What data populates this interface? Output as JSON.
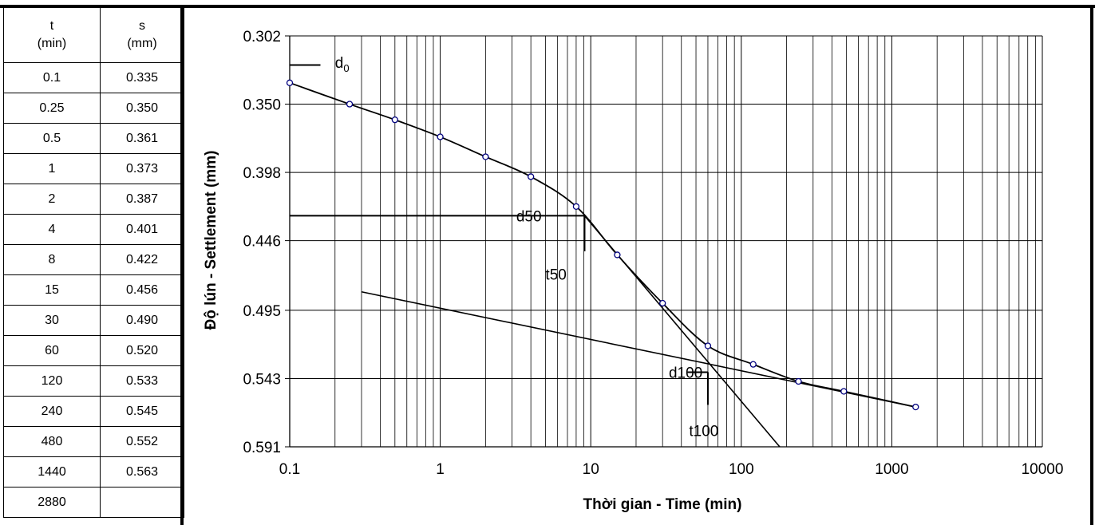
{
  "table": {
    "header_t": "t",
    "header_t_unit": "(min)",
    "header_s": "s",
    "header_s_unit": "(mm)",
    "rows": [
      {
        "t": "0.1",
        "s": "0.335"
      },
      {
        "t": "0.25",
        "s": "0.350"
      },
      {
        "t": "0.5",
        "s": "0.361"
      },
      {
        "t": "1",
        "s": "0.373"
      },
      {
        "t": "2",
        "s": "0.387"
      },
      {
        "t": "4",
        "s": "0.401"
      },
      {
        "t": "8",
        "s": "0.422"
      },
      {
        "t": "15",
        "s": "0.456"
      },
      {
        "t": "30",
        "s": "0.490"
      },
      {
        "t": "60",
        "s": "0.520"
      },
      {
        "t": "120",
        "s": "0.533"
      },
      {
        "t": "240",
        "s": "0.545"
      },
      {
        "t": "480",
        "s": "0.552"
      },
      {
        "t": "1440",
        "s": "0.563"
      },
      {
        "t": "2880",
        "s": ""
      }
    ]
  },
  "chart_data": {
    "type": "scatter",
    "xscale": "log",
    "xlim": [
      0.1,
      10000
    ],
    "ylim": [
      0.302,
      0.591
    ],
    "y_inverted": true,
    "xticks": [
      "0.1",
      "1",
      "10",
      "100",
      "1000",
      "10000"
    ],
    "yticks": [
      "0.302",
      "0.350",
      "0.398",
      "0.446",
      "0.495",
      "0.543",
      "0.591"
    ],
    "ytick_values": [
      0.302,
      0.35,
      0.398,
      0.446,
      0.495,
      0.543,
      0.591
    ],
    "xlabel": "Thời gian - Time (min)",
    "ylabel": "Độ lún - Settlement (mm)",
    "grid": true,
    "marker_color": "#00007f",
    "line_color": "#000000",
    "series": [
      {
        "points": [
          [
            0.1,
            0.335
          ],
          [
            0.25,
            0.35
          ],
          [
            0.5,
            0.361
          ],
          [
            1,
            0.373
          ],
          [
            2,
            0.387
          ],
          [
            4,
            0.401
          ],
          [
            8,
            0.422
          ],
          [
            15,
            0.456
          ],
          [
            30,
            0.49
          ],
          [
            60,
            0.52
          ],
          [
            120,
            0.533
          ],
          [
            240,
            0.545
          ],
          [
            480,
            0.552
          ],
          [
            1440,
            0.563
          ]
        ]
      }
    ],
    "construction_lines": [
      {
        "name": "d0",
        "points": [
          [
            0.1,
            0.3225
          ],
          [
            0.16,
            0.3225
          ]
        ]
      },
      {
        "name": "d50",
        "points": [
          [
            0.1,
            0.4285
          ],
          [
            9.1,
            0.4285
          ]
        ]
      },
      {
        "name": "t50",
        "points": [
          [
            9.1,
            0.4285
          ],
          [
            9.1,
            0.4535
          ]
        ]
      },
      {
        "name": "d100",
        "points": [
          [
            44,
            0.5385
          ],
          [
            60,
            0.5385
          ]
        ]
      },
      {
        "name": "t100",
        "points": [
          [
            60,
            0.5385
          ],
          [
            60,
            0.5615
          ]
        ]
      },
      {
        "name": "consolidation-tangent",
        "points": [
          [
            9.1,
            0.4285
          ],
          [
            180,
            0.591
          ]
        ]
      },
      {
        "name": "secondary-tangent",
        "points": [
          [
            0.3,
            0.482
          ],
          [
            1440,
            0.563
          ]
        ]
      }
    ],
    "annotations": [
      {
        "text": "d",
        "sub": "0",
        "x": 0.2,
        "y": 0.3245
      },
      {
        "text": "d50",
        "x": 3.2,
        "y": 0.4325
      },
      {
        "text": "t50",
        "x": 5.0,
        "y": 0.4735
      },
      {
        "text": "d100",
        "x": 33,
        "y": 0.5425
      },
      {
        "text": "t100",
        "x": 45,
        "y": 0.5835
      }
    ]
  }
}
